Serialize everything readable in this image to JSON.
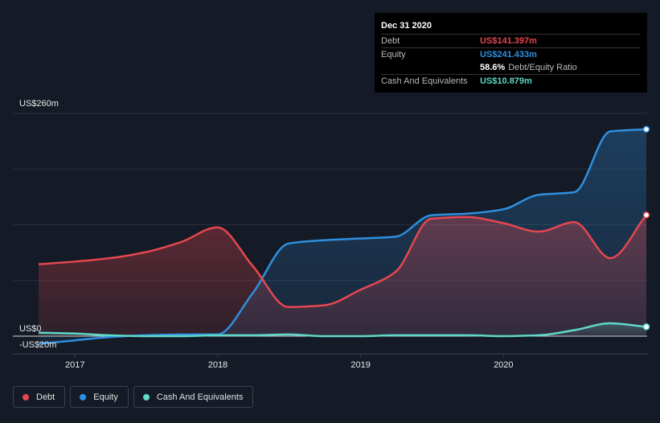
{
  "chart_data": {
    "type": "area",
    "x_domain": [
      "2016-09-30",
      "2020-12-31"
    ],
    "ylim": [
      -20,
      260
    ],
    "y_tick_labels": [
      "US$260m",
      "US$0",
      "-US$20m"
    ],
    "x_tick_labels": [
      "2017",
      "2018",
      "2019",
      "2020"
    ],
    "x_tick_values": [
      "2017-01-01",
      "2018-01-01",
      "2019-01-01",
      "2020-01-01"
    ],
    "grid": true,
    "legend_position": "bottom-left",
    "series": [
      {
        "name": "Debt",
        "color": "#e5474f",
        "points": [
          [
            "2016-09-30",
            84
          ],
          [
            "2016-12-31",
            87
          ],
          [
            "2017-03-31",
            91
          ],
          [
            "2017-06-30",
            98
          ],
          [
            "2017-09-30",
            110
          ],
          [
            "2017-12-31",
            127
          ],
          [
            "2018-03-31",
            82
          ],
          [
            "2018-06-30",
            34
          ],
          [
            "2018-09-30",
            36
          ],
          [
            "2018-12-31",
            54
          ],
          [
            "2019-03-31",
            75
          ],
          [
            "2019-06-30",
            137
          ],
          [
            "2019-09-30",
            139
          ],
          [
            "2019-12-31",
            132
          ],
          [
            "2020-03-31",
            122
          ],
          [
            "2020-06-30",
            133
          ],
          [
            "2020-09-30",
            91
          ],
          [
            "2020-12-31",
            141.397
          ]
        ]
      },
      {
        "name": "Equity",
        "color": "#2f8fe0",
        "points": [
          [
            "2016-09-30",
            -9
          ],
          [
            "2016-12-31",
            -5
          ],
          [
            "2017-03-31",
            -1
          ],
          [
            "2017-06-30",
            1
          ],
          [
            "2017-09-30",
            2
          ],
          [
            "2017-12-31",
            2
          ],
          [
            "2018-03-31",
            50
          ],
          [
            "2018-06-30",
            108
          ],
          [
            "2018-09-30",
            112
          ],
          [
            "2018-12-31",
            114
          ],
          [
            "2019-03-31",
            116
          ],
          [
            "2019-06-30",
            141
          ],
          [
            "2019-09-30",
            143
          ],
          [
            "2019-12-31",
            148
          ],
          [
            "2020-03-31",
            165
          ],
          [
            "2020-06-30",
            168
          ],
          [
            "2020-09-30",
            239
          ],
          [
            "2020-12-31",
            241.433
          ]
        ]
      },
      {
        "name": "Cash And Equivalents",
        "color": "#5fd8c8",
        "points": [
          [
            "2016-09-30",
            4
          ],
          [
            "2016-12-31",
            3
          ],
          [
            "2017-03-31",
            1
          ],
          [
            "2017-06-30",
            0
          ],
          [
            "2017-09-30",
            0
          ],
          [
            "2017-12-31",
            1
          ],
          [
            "2018-03-31",
            1
          ],
          [
            "2018-06-30",
            2
          ],
          [
            "2018-09-30",
            0
          ],
          [
            "2018-12-31",
            0
          ],
          [
            "2019-03-31",
            1
          ],
          [
            "2019-06-30",
            1
          ],
          [
            "2019-09-30",
            1
          ],
          [
            "2019-12-31",
            0
          ],
          [
            "2020-03-31",
            1
          ],
          [
            "2020-06-30",
            7
          ],
          [
            "2020-09-30",
            15
          ],
          [
            "2020-12-31",
            10.879
          ]
        ]
      }
    ]
  },
  "tooltip": {
    "date": "Dec 31 2020",
    "rows": {
      "debt": {
        "key": "Debt",
        "value": "US$141.397m",
        "color": "#e5474f"
      },
      "equity": {
        "key": "Equity",
        "value": "US$241.433m",
        "color": "#2f8fe0"
      },
      "ratio": {
        "value": "58.6%",
        "label": "Debt/Equity Ratio"
      },
      "cash": {
        "key": "Cash And Equivalents",
        "value": "US$10.879m",
        "color": "#5fd8c8"
      }
    }
  },
  "legend": [
    {
      "label": "Debt",
      "color": "#e5474f"
    },
    {
      "label": "Equity",
      "color": "#2f8fe0"
    },
    {
      "label": "Cash And Equivalents",
      "color": "#5fd8c8"
    }
  ]
}
